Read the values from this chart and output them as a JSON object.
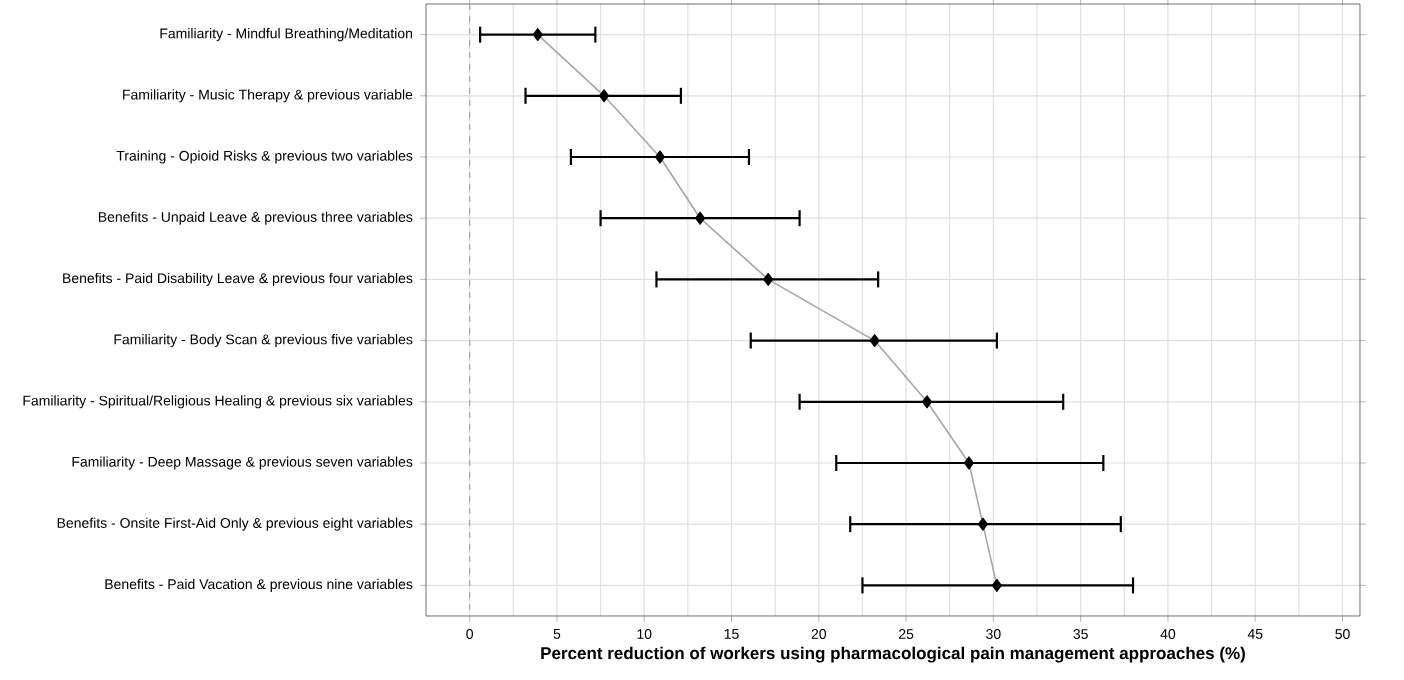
{
  "chart_data": {
    "type": "line",
    "orientation": "horizontal",
    "xlabel": "Percent reduction of workers using pharmacological pain management approaches (%)",
    "categories": [
      "Familiarity - Mindful Breathing/Meditation",
      "Familiarity - Music Therapy & previous variable",
      "Training - Opioid Risks & previous two variables",
      "Benefits - Unpaid Leave & previous three variables",
      "Benefits - Paid Disability Leave & previous four variables",
      "Familiarity - Body Scan & previous five variables",
      "Familiarity - Spiritual/Religious Healing & previous six variables",
      "Familiarity - Deep Massage & previous seven variables",
      "Benefits - Onsite First-Aid Only & previous eight variables",
      "Benefits - Paid Vacation & previous nine variables"
    ],
    "series": [
      {
        "color": "#a6a6a6",
        "marker": "none",
        "values": [
          3.9,
          7.7,
          10.9,
          13.2,
          17.1,
          23.2,
          26.2,
          28.6,
          29.4,
          30.2
        ]
      },
      {
        "type": "scatter",
        "color": "#000000",
        "marker": "diamond",
        "values": [
          3.9,
          7.7,
          10.9,
          13.2,
          17.1,
          23.2,
          26.2,
          28.6,
          29.4,
          30.2
        ],
        "errors": [
          [
            0.6,
            7.2
          ],
          [
            3.2,
            12.1
          ],
          [
            5.8,
            16.0
          ],
          [
            7.5,
            18.9
          ],
          [
            10.7,
            23.4
          ],
          [
            16.1,
            30.2
          ],
          [
            18.9,
            34.0
          ],
          [
            21.0,
            36.3
          ],
          [
            21.8,
            37.3
          ],
          [
            22.5,
            38.0
          ]
        ]
      }
    ],
    "xlim": [
      -2.5,
      51
    ],
    "xticks": [
      0,
      5,
      10,
      15,
      20,
      25,
      30,
      35,
      40,
      45,
      50
    ],
    "grid": true,
    "ref_lines": [
      {
        "axis": "x",
        "value": 0,
        "color": "#a6a6a6",
        "line_style": "dashed"
      }
    ]
  }
}
